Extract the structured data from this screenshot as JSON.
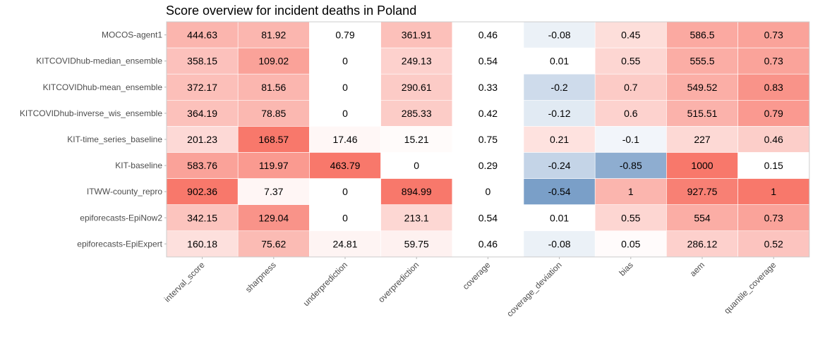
{
  "chart_data": {
    "type": "heatmap",
    "title": "Score overview for incident deaths in Poland",
    "xlabel": "",
    "ylabel": "",
    "models": [
      "MOCOS-agent1",
      "KITCOVIDhub-median_ensemble",
      "KITCOVIDhub-mean_ensemble",
      "KITCOVIDhub-inverse_wis_ensemble",
      "KIT-time_series_baseline",
      "KIT-baseline",
      "ITWW-county_repro",
      "epiforecasts-EpiNow2",
      "epiforecasts-EpiExpert"
    ],
    "metrics": [
      "interval_score",
      "sharpness",
      "underprediction",
      "overprediction",
      "coverage",
      "coverage_deviation",
      "bias",
      "aem",
      "quantile_coverage"
    ],
    "values": [
      [
        444.63,
        81.92,
        0.79,
        361.91,
        0.46,
        -0.08,
        0.45,
        586.5,
        0.73
      ],
      [
        358.15,
        109.02,
        0,
        249.13,
        0.54,
        0.01,
        0.55,
        555.5,
        0.73
      ],
      [
        372.17,
        81.56,
        0,
        290.61,
        0.33,
        -0.2,
        0.7,
        549.52,
        0.83
      ],
      [
        364.19,
        78.85,
        0,
        285.33,
        0.42,
        -0.12,
        0.6,
        515.51,
        0.79
      ],
      [
        201.23,
        168.57,
        17.46,
        15.21,
        0.75,
        0.21,
        -0.1,
        227,
        0.46
      ],
      [
        583.76,
        119.97,
        463.79,
        0,
        0.29,
        -0.24,
        -0.85,
        1000,
        0.15
      ],
      [
        902.36,
        7.37,
        0,
        894.99,
        0,
        -0.54,
        1,
        927.75,
        1
      ],
      [
        342.15,
        129.04,
        0,
        213.1,
        0.54,
        0.01,
        0.55,
        554,
        0.73
      ],
      [
        160.18,
        75.62,
        24.81,
        59.75,
        0.46,
        -0.08,
        0.05,
        286.12,
        0.52
      ]
    ],
    "colors": {
      "positive": "#f8786b",
      "negative": "#7a9fc8",
      "neutral": "#ffffff"
    },
    "grid": false,
    "legend": "none"
  }
}
